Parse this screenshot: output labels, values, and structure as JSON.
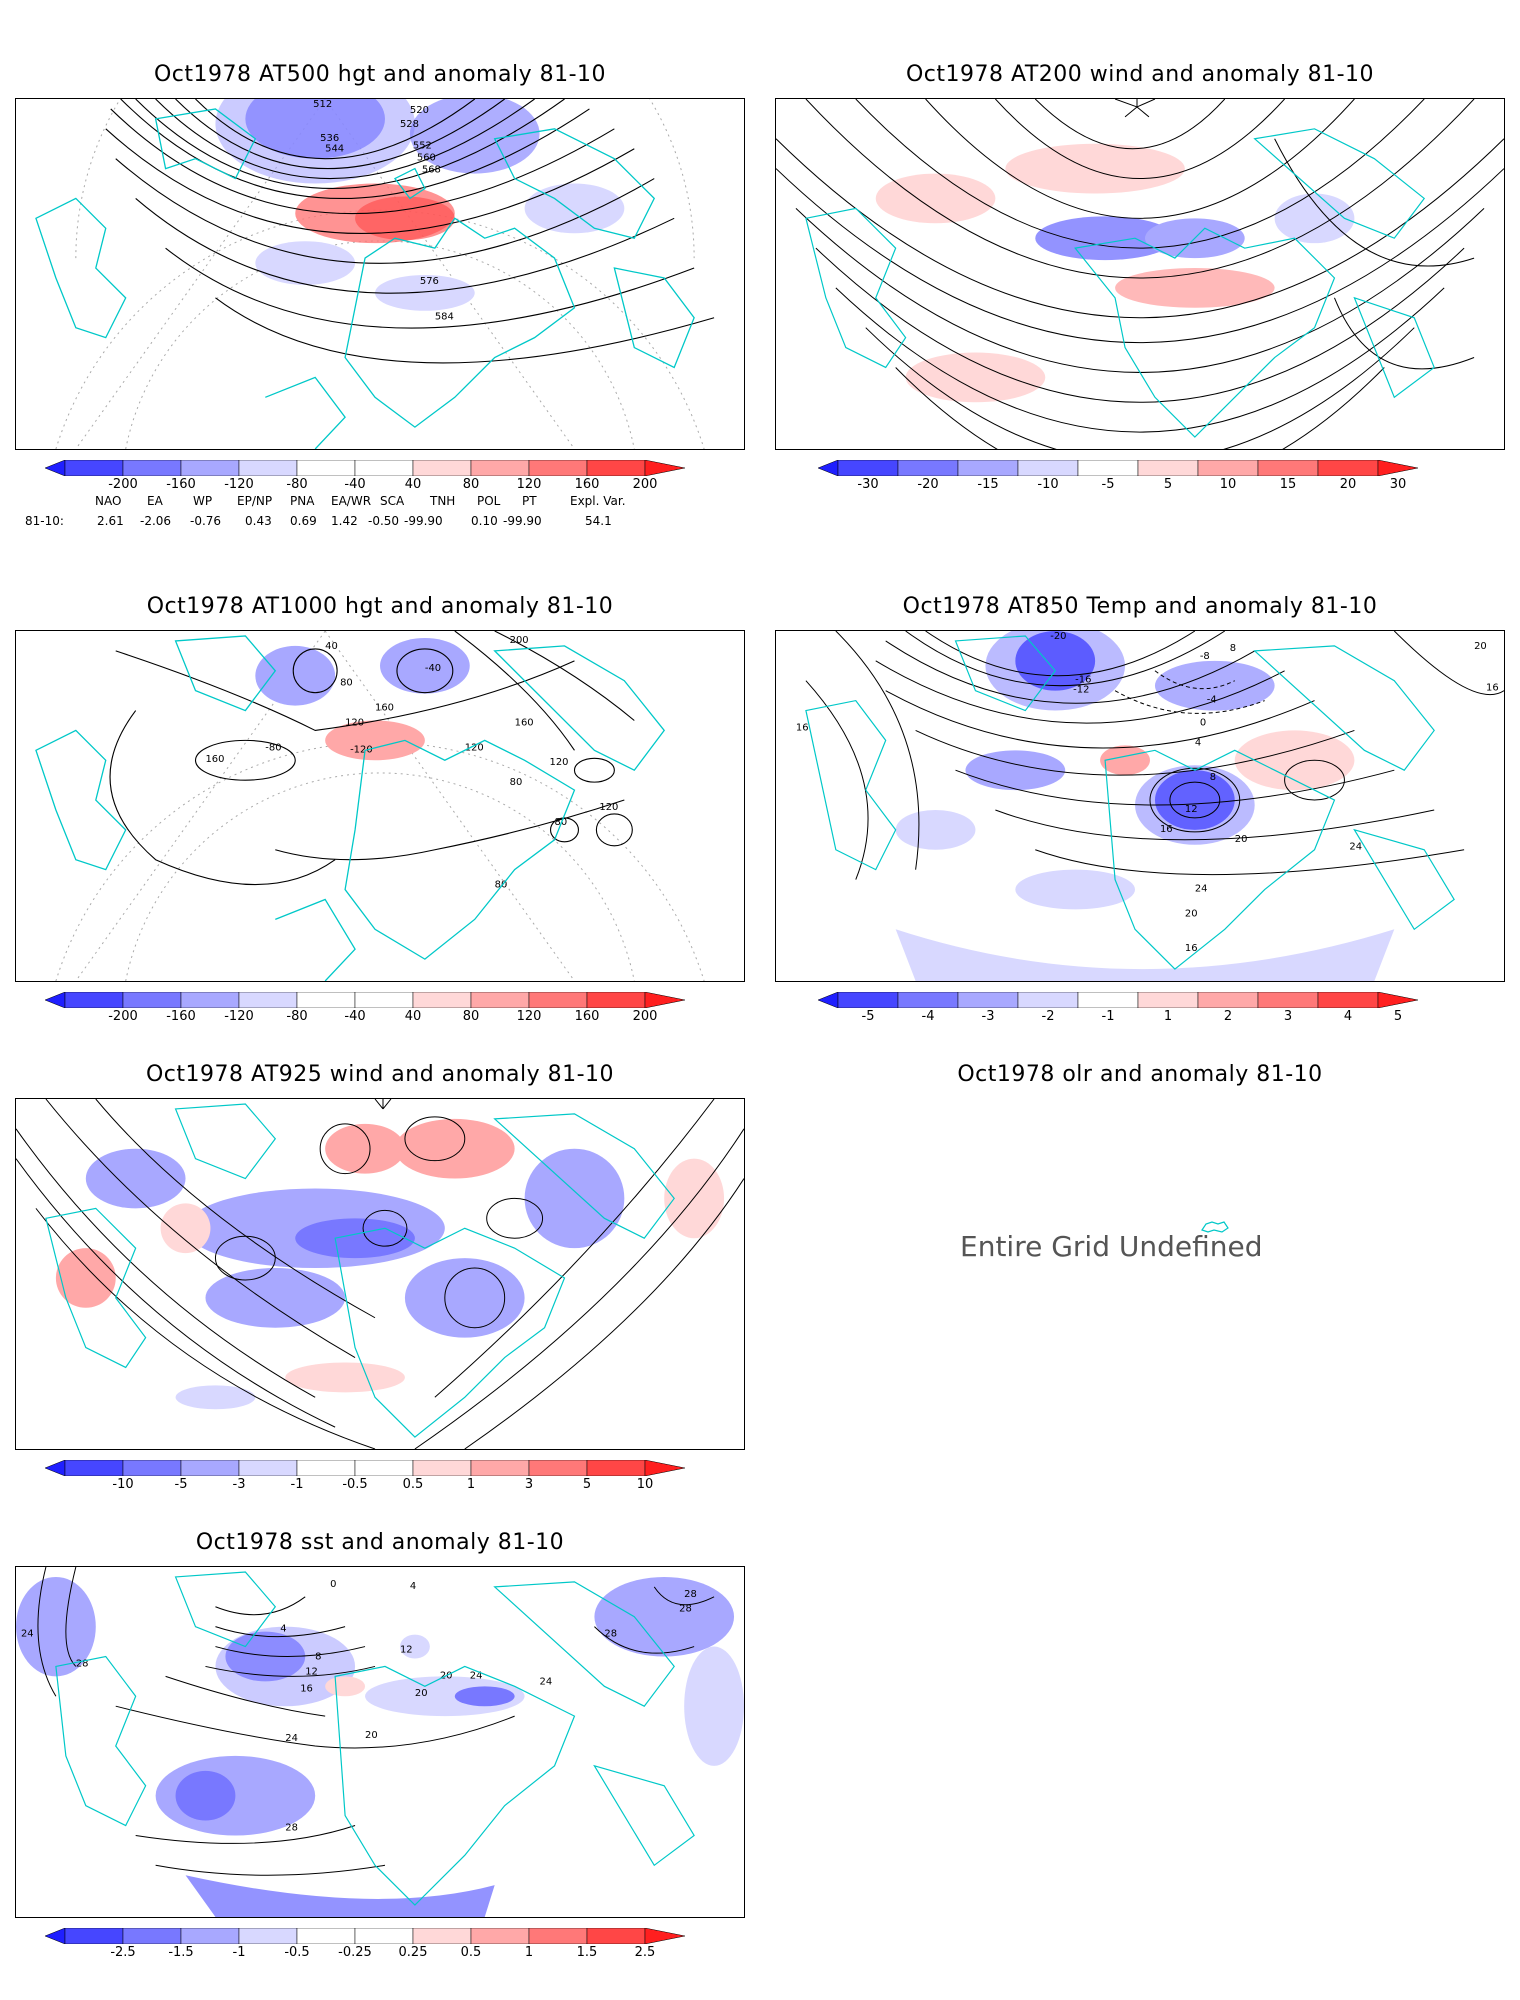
{
  "panels": [
    {
      "title": "Oct1978 AT500 hgt and anomaly 81-10",
      "contour_labels": [
        "512",
        "520",
        "528",
        "536",
        "544",
        "552",
        "560",
        "568",
        "576",
        "584"
      ]
    },
    {
      "title": "Oct1978 AT200 wind and anomaly 81-10"
    },
    {
      "title": "Oct1978 AT1000 hgt and anomaly 81-10",
      "contour_labels": [
        "40",
        "80",
        "120",
        "160",
        "200",
        "160",
        "120",
        "80",
        "160",
        "-40",
        "-80",
        "-120",
        "120",
        "80",
        "120",
        "80"
      ]
    },
    {
      "title": "Oct1978 AT850 Temp and anomaly 81-10",
      "contour_labels": [
        "-20",
        "-16",
        "-12",
        "-8",
        "-4",
        "0",
        "4",
        "8",
        "12",
        "16",
        "20",
        "24",
        "16",
        "20",
        "16",
        "24",
        "20",
        "16",
        "8"
      ]
    },
    {
      "title": "Oct1978 AT925 wind and anomaly 81-10"
    },
    {
      "title": "Oct1978 olr and anomaly 81-10",
      "message": "Entire Grid Undefined"
    },
    {
      "title": "Oct1978 sst and anomaly 81-10",
      "contour_labels": [
        "0",
        "4",
        "8",
        "12",
        "16",
        "20",
        "24",
        "28",
        "24",
        "28",
        "4",
        "20",
        "24",
        "28",
        "12",
        "20",
        "24",
        "28",
        "28"
      ]
    }
  ],
  "colorbars": {
    "hgt": [
      "-200",
      "-160",
      "-120",
      "-80",
      "-40",
      "40",
      "80",
      "120",
      "160",
      "200"
    ],
    "wind200": [
      "-30",
      "-20",
      "-15",
      "-10",
      "-5",
      "5",
      "10",
      "15",
      "20",
      "30"
    ],
    "temp": [
      "-5",
      "-4",
      "-3",
      "-2",
      "-1",
      "1",
      "2",
      "3",
      "4",
      "5"
    ],
    "wind925": [
      "-10",
      "-5",
      "-3",
      "-1",
      "-0.5",
      "0.5",
      "1",
      "3",
      "5",
      "10"
    ],
    "sst": [
      "-2.5",
      "-1.5",
      "-1",
      "-0.5",
      "-0.25",
      "0.25",
      "0.5",
      "1",
      "1.5",
      "2.5"
    ]
  },
  "colors": [
    "#1f1fff",
    "#4646ff",
    "#7878ff",
    "#a8a8ff",
    "#d8d8ff",
    "#ffffff",
    "#ffd8d8",
    "#ffa8a8",
    "#ff7878",
    "#ff4646",
    "#ff1f1f"
  ],
  "teleconnection": {
    "headers": [
      "NAO",
      "EA",
      "WP",
      "EP/NP",
      "PNA",
      "EA/WR",
      "SCA",
      "TNH",
      "POL",
      "PT",
      "Expl. Var."
    ],
    "row_label": "81-10:",
    "values": [
      "2.61",
      "-2.06",
      "-0.76",
      "0.43",
      "0.69",
      "1.42",
      "-0.50",
      "-99.90",
      "0.10",
      "-99.90",
      "54.1"
    ]
  }
}
